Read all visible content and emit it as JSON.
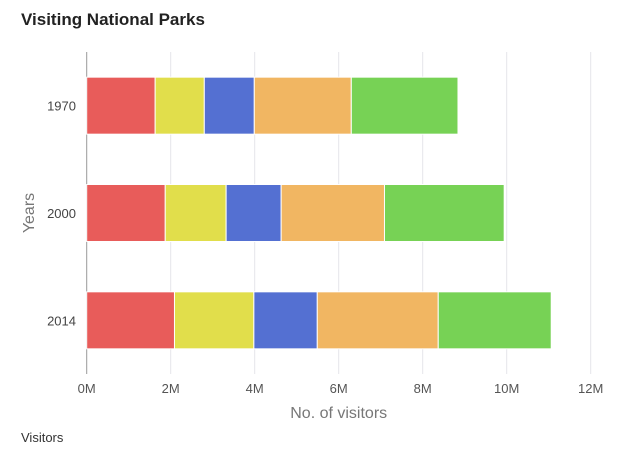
{
  "chart_data": {
    "type": "bar",
    "orientation": "horizontal",
    "stacked": true,
    "title": "Visiting National Parks",
    "xlabel": "No. of visitors",
    "ylabel": "Years",
    "categories": [
      "1970",
      "2000",
      "2014"
    ],
    "xlim": [
      0,
      12000000
    ],
    "xticks": [
      "0M",
      "2M",
      "4M",
      "6M",
      "8M",
      "10M",
      "12M"
    ],
    "grid": true,
    "series": [
      {
        "color": "#e85c5a",
        "values": [
          1630000,
          1870000,
          2090000
        ]
      },
      {
        "color": "#e1de4b",
        "values": [
          1170000,
          1450000,
          1890000
        ]
      },
      {
        "color": "#5470d2",
        "values": [
          1190000,
          1310000,
          1510000
        ]
      },
      {
        "color": "#f1b662",
        "values": [
          2310000,
          2460000,
          2880000
        ]
      },
      {
        "color": "#77d255",
        "values": [
          2540000,
          2850000,
          2690000
        ]
      }
    ]
  },
  "footer": "Visitors"
}
